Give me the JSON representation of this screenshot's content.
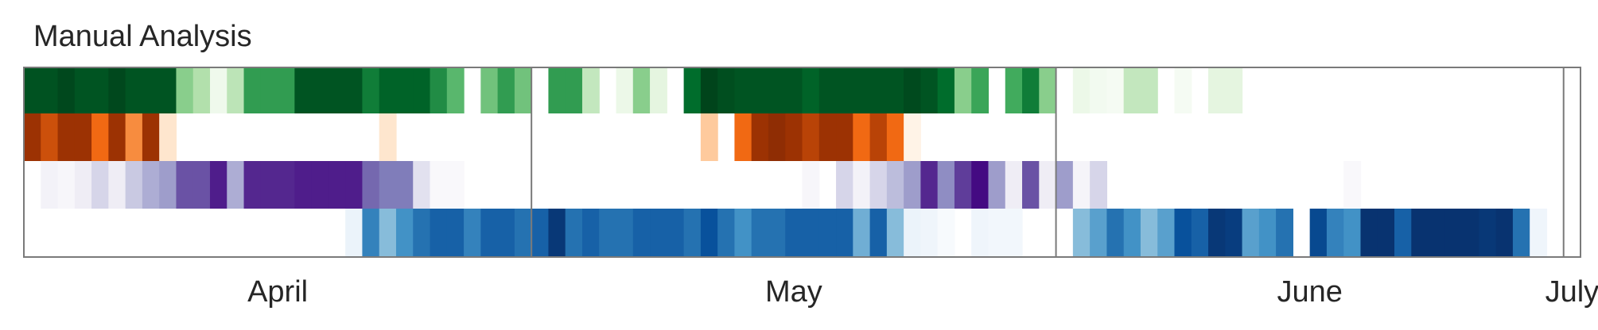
{
  "chart_data": {
    "type": "heatmap",
    "title": "Manual Analysis",
    "x_axis": "day",
    "x_range": [
      "2023-04-01",
      "2023-07-02"
    ],
    "month_labels": [
      "April",
      "May",
      "June",
      "July"
    ],
    "month_starts": [
      "2023-04-01",
      "2023-05-01",
      "2023-06-01",
      "2023-07-01"
    ],
    "value_range": [
      0,
      1
    ],
    "rows": [
      {
        "colormap": "Greens",
        "values": [
          0.93,
          0.93,
          0.98,
          0.92,
          0.92,
          0.98,
          0.92,
          0.92,
          0.92,
          0.45,
          0.35,
          0.12,
          0.32,
          0.65,
          0.65,
          0.65,
          0.92,
          0.92,
          0.92,
          0.92,
          0.75,
          0.85,
          0.85,
          0.85,
          0.7,
          0.55,
          0,
          0.5,
          0.65,
          0.5,
          0,
          0.65,
          0.65,
          0.3,
          0,
          0.15,
          0.45,
          0.2,
          0,
          0.8,
          1.0,
          0.95,
          0.92,
          0.92,
          0.92,
          0.92,
          0.85,
          0.92,
          0.92,
          0.92,
          0.92,
          0.92,
          0.97,
          0.92,
          0.8,
          0.45,
          0.62,
          0,
          0.6,
          0.75,
          0.45,
          0,
          0.15,
          0.1,
          0.08,
          0.3,
          0.3,
          0,
          0.08,
          0,
          0.2,
          0.2,
          0,
          0,
          0,
          0,
          0,
          0,
          0,
          0,
          0,
          0,
          0,
          0,
          0,
          0,
          0,
          0,
          0,
          0,
          0,
          0
        ]
      },
      {
        "colormap": "Oranges",
        "values": [
          0.85,
          0.7,
          0.85,
          0.85,
          0.6,
          0.85,
          0.5,
          0.85,
          0.2,
          0,
          0,
          0,
          0,
          0,
          0,
          0,
          0,
          0,
          0,
          0,
          0,
          0.2,
          0,
          0,
          0,
          0,
          0,
          0,
          0,
          0,
          0,
          0,
          0,
          0,
          0,
          0,
          0,
          0,
          0,
          0,
          0.3,
          0,
          0.6,
          0.85,
          0.92,
          0.85,
          0.75,
          0.85,
          0.85,
          0.6,
          0.75,
          0.6,
          0.1,
          0,
          0,
          0,
          0,
          0,
          0,
          0,
          0,
          0,
          0,
          0,
          0,
          0,
          0,
          0,
          0,
          0,
          0,
          0,
          0,
          0,
          0,
          0,
          0,
          0,
          0,
          0,
          0,
          0,
          0,
          0,
          0,
          0,
          0,
          0,
          0,
          0,
          0,
          0
        ]
      },
      {
        "colormap": "Purples",
        "values": [
          0,
          0.15,
          0.1,
          0.2,
          0.3,
          0.2,
          0.35,
          0.45,
          0.5,
          0.7,
          0.7,
          0.85,
          0.45,
          0.8,
          0.8,
          0.8,
          0.85,
          0.85,
          0.85,
          0.85,
          0.65,
          0.6,
          0.6,
          0.25,
          0.08,
          0.08,
          0,
          0,
          0,
          0,
          0,
          0,
          0,
          0,
          0,
          0,
          0,
          0,
          0,
          0,
          0,
          0,
          0,
          0,
          0,
          0,
          0.1,
          0,
          0.3,
          0.15,
          0.3,
          0.4,
          0.5,
          0.8,
          0.55,
          0.75,
          0.95,
          0.5,
          0.2,
          0.7,
          0.2,
          0.5,
          0.12,
          0.3,
          0,
          0,
          0,
          0,
          0,
          0,
          0,
          0,
          0,
          0,
          0,
          0,
          0,
          0,
          0.08,
          0,
          0,
          0,
          0,
          0,
          0,
          0,
          0,
          0,
          0,
          0,
          0,
          0
        ]
      },
      {
        "colormap": "Blues",
        "values": [
          0,
          0,
          0,
          0,
          0,
          0,
          0,
          0,
          0,
          0,
          0,
          0,
          0,
          0,
          0,
          0,
          0,
          0,
          0,
          0.12,
          0.65,
          0.45,
          0.6,
          0.7,
          0.75,
          0.75,
          0.65,
          0.75,
          0.75,
          0.7,
          0.75,
          0.95,
          0.7,
          0.75,
          0.7,
          0.7,
          0.75,
          0.75,
          0.75,
          0.7,
          0.8,
          0.7,
          0.6,
          0.7,
          0.7,
          0.75,
          0.75,
          0.75,
          0.75,
          0.5,
          0.75,
          0.45,
          0.12,
          0.1,
          0.05,
          0,
          0.1,
          0.08,
          0.08,
          0,
          0,
          0,
          0.45,
          0.55,
          0.7,
          0.6,
          0.45,
          0.55,
          0.8,
          0.75,
          0.95,
          0.92,
          0.55,
          0.6,
          0.7,
          0,
          0.85,
          0.65,
          0.6,
          0.98,
          0.98,
          0.75,
          0.98,
          0.98,
          0.98,
          0.98,
          0.95,
          0.98,
          0.7,
          0.1,
          0,
          0
        ]
      }
    ]
  }
}
